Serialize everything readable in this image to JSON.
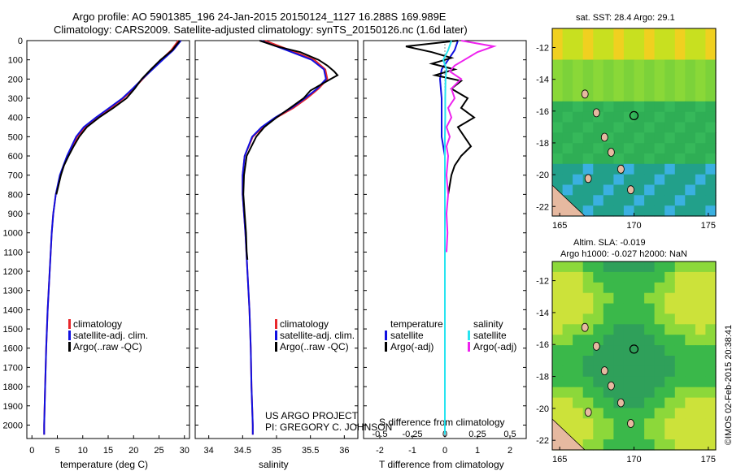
{
  "header": {
    "line1": "Argo profile: AO 5901385_196 24-Jan-2015 20150124_1127 16.288S 169.989E",
    "line2": "Climatology: CARS2009. Satellite-adjusted climatology: synTS_20150126.nc (1.6d later)"
  },
  "colors": {
    "climatology": "#e8272b",
    "satellite": "#1010e0",
    "argo": "#000000",
    "satellite_salinity": "#28e4f0",
    "argo_salinity": "#ee22ee",
    "land": "#e6b9a0"
  },
  "legend": {
    "climatology": "climatology",
    "satellite_clim": "satellite-adj. clim.",
    "argo_raw": "Argo(..raw -QC)",
    "temperature": "temperature",
    "salinity": "salinity",
    "satellite": "satellite",
    "argo_adj": "Argo(-adj)"
  },
  "credits": {
    "project": "US ARGO PROJECT",
    "pi": "PI: GREGORY C. JOHNSON",
    "stamp": "©IMOS 02-Feb-2015 20:38:41"
  },
  "maps": {
    "sst_title": "sat. SST: 28.4  Argo: 29.1",
    "sla_title1": "Altim. SLA: -0.019",
    "sla_title2": "Argo h1000: -0.027 h2000: NaN",
    "lat_ticks": [
      "-12",
      "-14",
      "-16",
      "-18",
      "-20",
      "-22"
    ],
    "lon_ticks": [
      "165",
      "170",
      "175"
    ]
  },
  "chart_data": [
    {
      "type": "line",
      "id": "temperature",
      "xlabel": "temperature (deg C)",
      "xlim": [
        -1,
        31
      ],
      "ylim": [
        0,
        2070
      ],
      "xticks": [
        "0",
        "5",
        "10",
        "15",
        "20",
        "25",
        "30"
      ],
      "yticks": [
        "0",
        "100",
        "200",
        "300",
        "400",
        "500",
        "600",
        "700",
        "800",
        "900",
        "1000",
        "1100",
        "1200",
        "1300",
        "1400",
        "1500",
        "1600",
        "1700",
        "1800",
        "1900",
        "2000"
      ],
      "series": [
        {
          "name": "climatology",
          "depth": [
            0,
            50,
            100,
            150,
            200,
            250,
            300,
            350,
            400,
            450,
            500,
            600,
            700,
            800,
            900,
            1000,
            1200,
            1400,
            1600,
            1800,
            2000,
            2050
          ],
          "values": [
            28.8,
            27.4,
            25.4,
            23.6,
            21.8,
            20,
            18,
            15.5,
            13,
            10.5,
            8.9,
            7.0,
            5.6,
            4.7,
            4.2,
            3.9,
            3.5,
            3.1,
            2.8,
            2.6,
            2.4,
            2.4
          ]
        },
        {
          "name": "satellite-adj. clim.",
          "depth": [
            0,
            50,
            100,
            150,
            200,
            250,
            300,
            350,
            400,
            450,
            500,
            600,
            700,
            800,
            900,
            1000,
            1200,
            1400,
            1600,
            1800,
            2000,
            2050
          ],
          "values": [
            29.3,
            27.8,
            25.7,
            23.7,
            21.7,
            19.8,
            17.8,
            15.2,
            12.6,
            10.2,
            8.7,
            6.9,
            5.5,
            4.7,
            4.2,
            3.9,
            3.5,
            3.1,
            2.8,
            2.6,
            2.4,
            2.4
          ]
        },
        {
          "name": "Argo(..raw -QC)",
          "depth": [
            0,
            50,
            100,
            150,
            200,
            250,
            300,
            350,
            400,
            450,
            500,
            550,
            600,
            650,
            700,
            800
          ],
          "values": [
            29.1,
            27.6,
            25.3,
            23.4,
            21.6,
            20.2,
            18.6,
            16,
            13.2,
            10.8,
            9.3,
            8.2,
            7.2,
            6.3,
            5.7,
            4.8
          ]
        }
      ]
    },
    {
      "type": "line",
      "id": "salinity",
      "xlabel": "salinity",
      "xlim": [
        33.8,
        36.2
      ],
      "ylim": [
        0,
        2070
      ],
      "xticks": [
        "34",
        "34.5",
        "35",
        "35.5",
        "36"
      ],
      "series": [
        {
          "name": "climatology",
          "depth": [
            0,
            50,
            100,
            150,
            200,
            250,
            300,
            350,
            400,
            450,
            500,
            600,
            700,
            800,
            900,
            1000,
            1200,
            1400,
            1600,
            1800,
            2000,
            2050
          ],
          "values": [
            34.83,
            35.2,
            35.56,
            35.72,
            35.75,
            35.62,
            35.45,
            35.25,
            35.0,
            34.8,
            34.65,
            34.53,
            34.5,
            34.5,
            34.52,
            34.54,
            34.57,
            34.6,
            34.62,
            34.63,
            34.65,
            34.65
          ]
        },
        {
          "name": "satellite-adj. clim.",
          "depth": [
            0,
            50,
            100,
            150,
            200,
            250,
            300,
            350,
            400,
            450,
            500,
            600,
            700,
            800,
            900,
            1000,
            1200,
            1400,
            1600,
            1800,
            2000,
            2050
          ],
          "values": [
            34.77,
            35.15,
            35.52,
            35.7,
            35.73,
            35.6,
            35.42,
            35.22,
            34.98,
            34.78,
            34.64,
            34.53,
            34.5,
            34.5,
            34.52,
            34.54,
            34.57,
            34.6,
            34.62,
            34.63,
            34.65,
            34.65
          ]
        },
        {
          "name": "Argo(..raw -QC)",
          "depth": [
            0,
            30,
            60,
            100,
            130,
            160,
            180,
            200,
            230,
            260,
            300,
            350,
            400,
            450,
            500,
            600,
            700,
            800,
            900,
            1000,
            1100,
            1140
          ],
          "values": [
            34.75,
            35.0,
            35.35,
            35.62,
            35.75,
            35.85,
            35.9,
            35.8,
            35.65,
            35.5,
            35.4,
            35.2,
            35.0,
            34.82,
            34.7,
            34.56,
            34.52,
            34.51,
            34.53,
            34.55,
            34.56,
            34.57
          ]
        }
      ]
    },
    {
      "type": "line",
      "id": "difference",
      "xlabel": "T difference from climatology",
      "xlabel2": "S difference from climatology",
      "xlim": [
        -2.5,
        2.5
      ],
      "ylim": [
        0,
        2070
      ],
      "xticks_T": [
        "-2",
        "-1",
        "0",
        "1",
        "2"
      ],
      "xticks_S": [
        "-0.5",
        "-0.25",
        "0",
        "0.25",
        "0.5"
      ],
      "series": [
        {
          "name": "temperature satellite",
          "depth": [
            0,
            50,
            100,
            150,
            200,
            300,
            400,
            500,
            600,
            700,
            800,
            1000,
            1500,
            2050
          ],
          "values": [
            0.4,
            0.3,
            0.1,
            -0.1,
            -0.15,
            -0.1,
            -0.1,
            -0.1,
            0,
            0,
            0,
            0,
            0,
            0
          ]
        },
        {
          "name": "temperature Argo(-adj)",
          "depth": [
            0,
            30,
            60,
            90,
            120,
            150,
            180,
            210,
            250,
            300,
            350,
            400,
            450,
            500,
            550,
            600,
            650,
            700,
            800
          ],
          "values": [
            0.4,
            -1.2,
            -0.4,
            0.2,
            -0.4,
            0.3,
            -0.3,
            0.5,
            0.2,
            0.7,
            0.5,
            0.9,
            0.4,
            0.6,
            0.8,
            0.5,
            0.3,
            0.2,
            0.1
          ]
        },
        {
          "name": "salinity satellite",
          "depth": [
            0,
            50,
            100,
            150,
            200,
            300,
            400,
            500,
            600,
            700,
            1000,
            1500,
            2050
          ],
          "values": [
            0.2,
            0.1,
            -0.05,
            0.05,
            0.02,
            0.01,
            0.01,
            0,
            0,
            0,
            0,
            0,
            0
          ]
        },
        {
          "name": "salinity Argo(-adj)",
          "depth": [
            0,
            30,
            60,
            100,
            130,
            160,
            200,
            250,
            300,
            350,
            400,
            450,
            500,
            550,
            600,
            700,
            800,
            900,
            1000,
            1100
          ],
          "values": [
            0.5,
            1.5,
            1.0,
            0.6,
            0.3,
            0.15,
            0.5,
            0.2,
            0.3,
            0.1,
            0.2,
            0.05,
            0.15,
            0.05,
            0.1,
            0.05,
            0.1,
            0.05,
            0.08,
            0.05
          ]
        }
      ]
    }
  ]
}
